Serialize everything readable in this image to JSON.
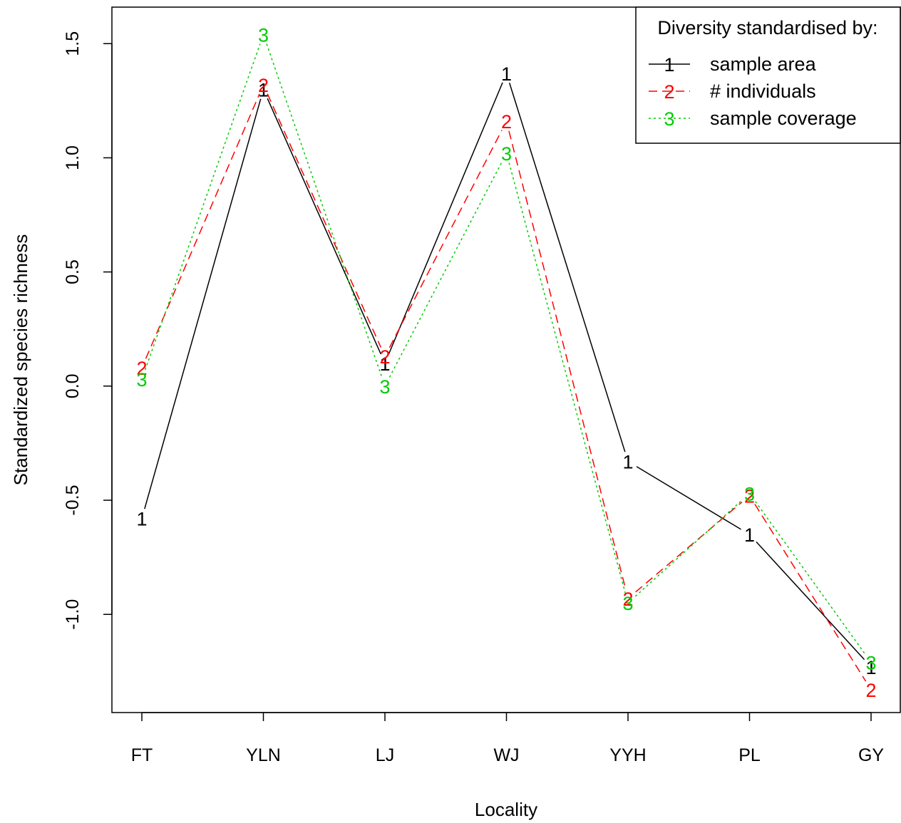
{
  "chart_data": {
    "type": "line",
    "xlabel": "Locality",
    "ylabel": "Standardized species richness",
    "categories": [
      "FT",
      "YLN",
      "LJ",
      "WJ",
      "YYH",
      "PL",
      "GY"
    ],
    "ylim": [
      -1.43,
      1.66
    ],
    "yticks": [
      "-1.0",
      "-0.5",
      "0.0",
      "0.5",
      "1.0",
      "1.5"
    ],
    "ytick_values": [
      -1.0,
      -0.5,
      0.0,
      0.5,
      1.0,
      1.5
    ],
    "grid": false,
    "legend": {
      "position": "top-right",
      "title": "Diversity standardised by:"
    },
    "series": [
      {
        "name": "sample area",
        "marker": "1",
        "color": "#000000",
        "dash": "solid",
        "values": [
          -0.58,
          1.3,
          0.1,
          1.37,
          -0.33,
          -0.65,
          -1.23
        ]
      },
      {
        "name": "# individuals",
        "marker": "2",
        "color": "#ff0000",
        "dash": "dashed",
        "values": [
          0.08,
          1.32,
          0.13,
          1.16,
          -0.93,
          -0.48,
          -1.33
        ]
      },
      {
        "name": "sample coverage",
        "marker": "3",
        "color": "#00cd00",
        "dash": "dotted",
        "values": [
          0.03,
          1.54,
          0.0,
          1.02,
          -0.95,
          -0.47,
          -1.21
        ]
      }
    ]
  }
}
